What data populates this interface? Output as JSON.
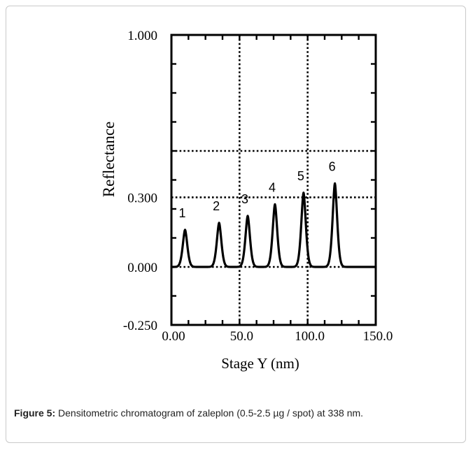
{
  "chart_data": {
    "type": "line",
    "xlabel": "Stage Y (nm)",
    "ylabel": "Reflectance",
    "xlim": [
      0,
      150
    ],
    "ylim": [
      -0.25,
      1.0
    ],
    "x_tick_labels": [
      "0.00",
      "50.0",
      "100.0",
      "150.0"
    ],
    "x_ticks": [
      0,
      50,
      100,
      150
    ],
    "y_tick_labels": [
      "1.000",
      "0.300",
      "0.000",
      "-0.250"
    ],
    "y_ticks": [
      1.0,
      0.3,
      0.0,
      -0.25
    ],
    "grid": "dotted",
    "grid_x": [
      50,
      100
    ],
    "grid_y": [
      0.5,
      0.3,
      0.0
    ],
    "line_color": "#000000",
    "series": [
      {
        "peaks": [
          {
            "label": "1",
            "x": 10,
            "height": 0.16
          },
          {
            "label": "2",
            "x": 35,
            "height": 0.19
          },
          {
            "label": "3",
            "x": 56,
            "height": 0.22
          },
          {
            "label": "4",
            "x": 76,
            "height": 0.27
          },
          {
            "label": "5",
            "x": 97,
            "height": 0.32
          },
          {
            "label": "6",
            "x": 120,
            "height": 0.36
          }
        ]
      }
    ]
  },
  "caption": {
    "label": "Figure 5:",
    "text": " Densitometric chromatogram of zaleplon (0.5-2.5 µg / spot) at 338 nm."
  }
}
